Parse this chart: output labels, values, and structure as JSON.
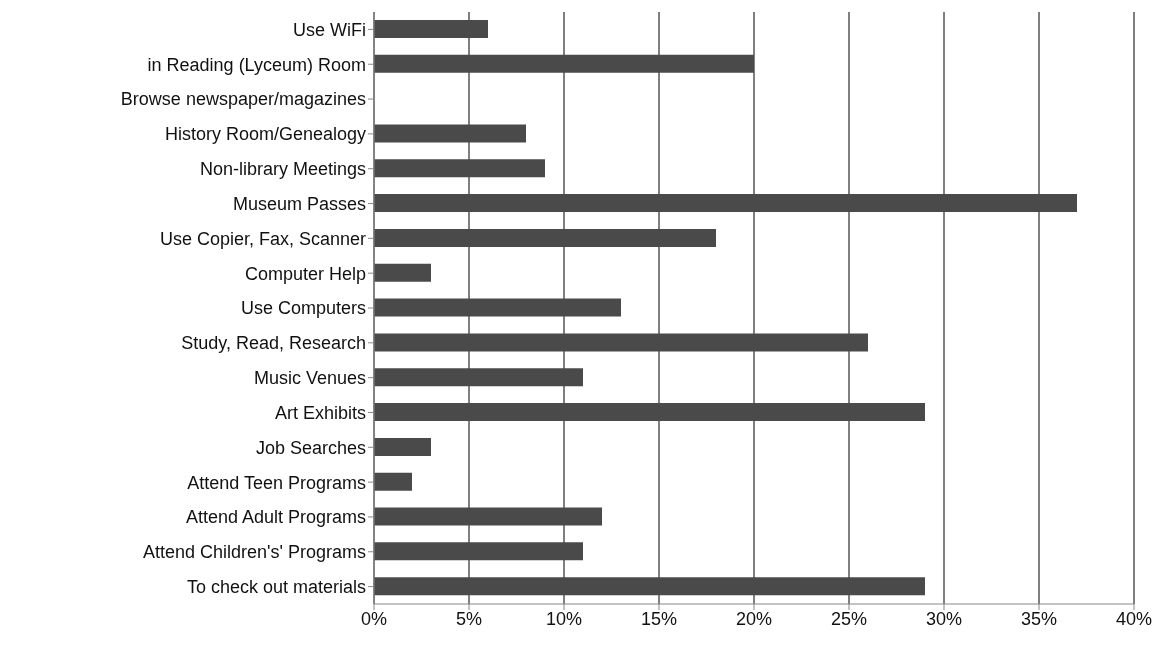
{
  "chart_data": {
    "type": "bar",
    "orientation": "horizontal",
    "categories": [
      "Use WiFi",
      "in Reading (Lyceum) Room",
      "Browse newspaper/magazines",
      "History Room/Genealogy",
      "Non-library Meetings",
      "Museum Passes",
      "Use Copier, Fax, Scanner",
      "Computer Help",
      "Use Computers",
      "Study, Read, Research",
      "Music Venues",
      "Art Exhibits",
      "Job Searches",
      "Attend Teen Programs",
      "Attend Adult Programs",
      "Attend Children's' Programs",
      "To check out materials"
    ],
    "values": [
      6,
      20,
      0,
      8,
      9,
      37,
      18,
      3,
      13,
      26,
      11,
      29,
      3,
      2,
      12,
      11,
      29
    ],
    "color": "#4a4a4a",
    "xlim": [
      0,
      40
    ],
    "xticks": [
      {
        "value": 0,
        "label": "0%"
      },
      {
        "value": 5,
        "label": "5%"
      },
      {
        "value": 10,
        "label": "10%"
      },
      {
        "value": 15,
        "label": "15%"
      },
      {
        "value": 20,
        "label": "20%"
      },
      {
        "value": 25,
        "label": "25%"
      },
      {
        "value": 30,
        "label": "30%"
      },
      {
        "value": 35,
        "label": "35%"
      },
      {
        "value": 40,
        "label": "40%"
      }
    ],
    "grid": "x",
    "legend": false
  }
}
